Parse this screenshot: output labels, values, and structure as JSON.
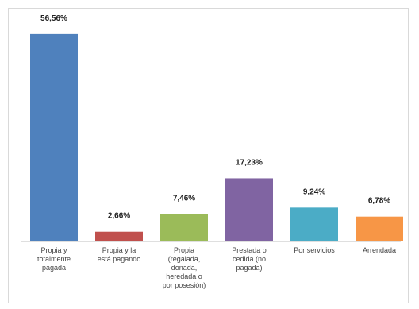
{
  "chart_data": {
    "type": "bar",
    "title": "",
    "xlabel": "",
    "ylabel": "",
    "ylim": [
      0,
      60
    ],
    "grid": false,
    "legend": "none",
    "categories": [
      [
        "Propia y",
        "totalmente",
        "pagada"
      ],
      [
        "Propia y la",
        "está pagando"
      ],
      [
        "Propia",
        "(regalada,",
        "donada,",
        "heredada o",
        "por posesión)"
      ],
      [
        "Prestada o",
        "cedida (no",
        "pagada)"
      ],
      [
        "Por servicios"
      ],
      [
        "Arrendada"
      ]
    ],
    "values": [
      56.56,
      2.66,
      7.46,
      17.23,
      9.24,
      6.78
    ],
    "value_labels": [
      "56,56%",
      "2,66%",
      "7,46%",
      "17,23%",
      "9,24%",
      "6,78%"
    ],
    "colors": [
      "#4f81bd",
      "#c0504d",
      "#9bbb59",
      "#8064a2",
      "#4bacc6",
      "#f79646"
    ]
  }
}
